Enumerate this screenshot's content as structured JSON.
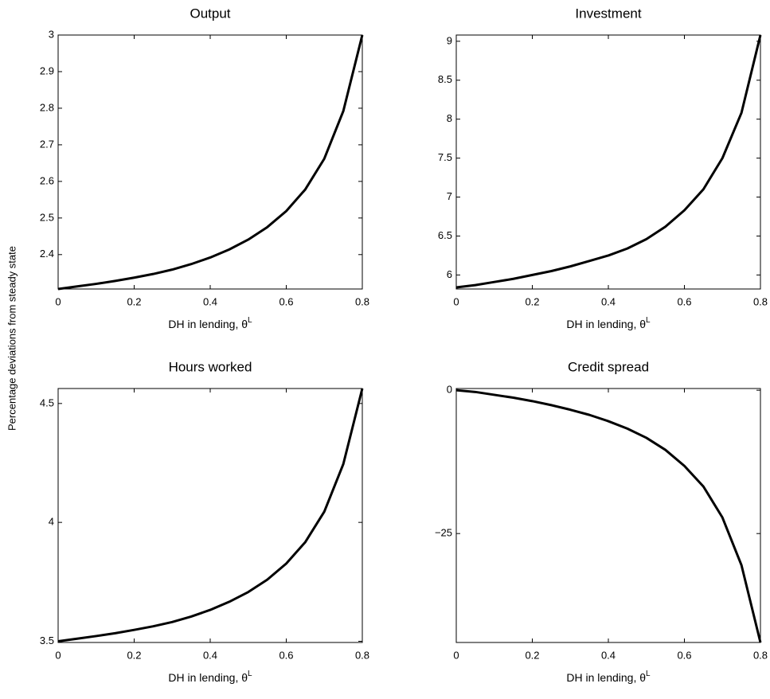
{
  "figure_ylabel": "Percentage deviations from steady state",
  "chart_data": [
    {
      "type": "line",
      "title": "Output",
      "xlabel": "DH in lending, θ",
      "xlabel_superscript": "L",
      "x": [
        0,
        0.05,
        0.1,
        0.15,
        0.2,
        0.25,
        0.3,
        0.35,
        0.4,
        0.45,
        0.5,
        0.55,
        0.6,
        0.65,
        0.7,
        0.75,
        0.8
      ],
      "values": [
        2.306,
        2.313,
        2.32,
        2.328,
        2.337,
        2.347,
        2.359,
        2.374,
        2.392,
        2.414,
        2.441,
        2.475,
        2.519,
        2.578,
        2.662,
        2.792,
        3.0
      ],
      "color": "#000000",
      "xlim": [
        0,
        0.8
      ],
      "xticks": [
        0,
        0.2,
        0.4,
        0.6,
        0.8
      ],
      "ylim": [
        2.306,
        3.0
      ],
      "yticks": [
        2.4,
        2.5,
        2.6,
        2.7,
        2.8,
        2.9,
        3
      ]
    },
    {
      "type": "line",
      "title": "Investment",
      "xlabel": "DH in lending, θ",
      "xlabel_superscript": "L",
      "x": [
        0,
        0.05,
        0.1,
        0.15,
        0.2,
        0.25,
        0.3,
        0.35,
        0.4,
        0.45,
        0.5,
        0.55,
        0.6,
        0.65,
        0.7,
        0.75,
        0.8
      ],
      "values": [
        5.84,
        5.87,
        5.91,
        5.95,
        6.0,
        6.05,
        6.11,
        6.18,
        6.25,
        6.34,
        6.46,
        6.62,
        6.83,
        7.1,
        7.5,
        8.08,
        9.08
      ],
      "color": "#000000",
      "xlim": [
        0,
        0.8
      ],
      "xticks": [
        0,
        0.2,
        0.4,
        0.6,
        0.8
      ],
      "ylim": [
        5.82,
        9.08
      ],
      "yticks": [
        6,
        6.5,
        7,
        7.5,
        8,
        8.5,
        9
      ]
    },
    {
      "type": "line",
      "title": "Hours worked",
      "xlabel": "DH in lending, θ",
      "xlabel_superscript": "L",
      "x": [
        0,
        0.05,
        0.1,
        0.15,
        0.2,
        0.25,
        0.3,
        0.35,
        0.4,
        0.45,
        0.5,
        0.55,
        0.6,
        0.65,
        0.7,
        0.75,
        0.8
      ],
      "values": [
        3.5,
        3.511,
        3.522,
        3.534,
        3.548,
        3.563,
        3.581,
        3.604,
        3.632,
        3.666,
        3.707,
        3.759,
        3.827,
        3.917,
        4.045,
        4.245,
        4.563
      ],
      "color": "#000000",
      "xlim": [
        0,
        0.8
      ],
      "xticks": [
        0,
        0.2,
        0.4,
        0.6,
        0.8
      ],
      "ylim": [
        3.495,
        4.563
      ],
      "yticks": [
        3.5,
        4,
        4.5
      ]
    },
    {
      "type": "line",
      "title": "Credit spread",
      "xlabel": "DH in lending, θ",
      "xlabel_superscript": "L",
      "x": [
        0,
        0.05,
        0.1,
        0.15,
        0.2,
        0.25,
        0.3,
        0.35,
        0.4,
        0.45,
        0.5,
        0.55,
        0.6,
        0.65,
        0.7,
        0.75,
        0.8
      ],
      "values": [
        0,
        -0.3,
        -0.8,
        -1.3,
        -1.9,
        -2.6,
        -3.4,
        -4.3,
        -5.4,
        -6.7,
        -8.3,
        -10.4,
        -13.2,
        -16.8,
        -22.2,
        -30.5,
        -44.0
      ],
      "color": "#000000",
      "xlim": [
        0,
        0.8
      ],
      "xticks": [
        0,
        0.2,
        0.4,
        0.6,
        0.8
      ],
      "ylim": [
        -44.0,
        0.3
      ],
      "yticks": [
        {
          "value": -25,
          "label": "−25"
        },
        0
      ]
    }
  ]
}
